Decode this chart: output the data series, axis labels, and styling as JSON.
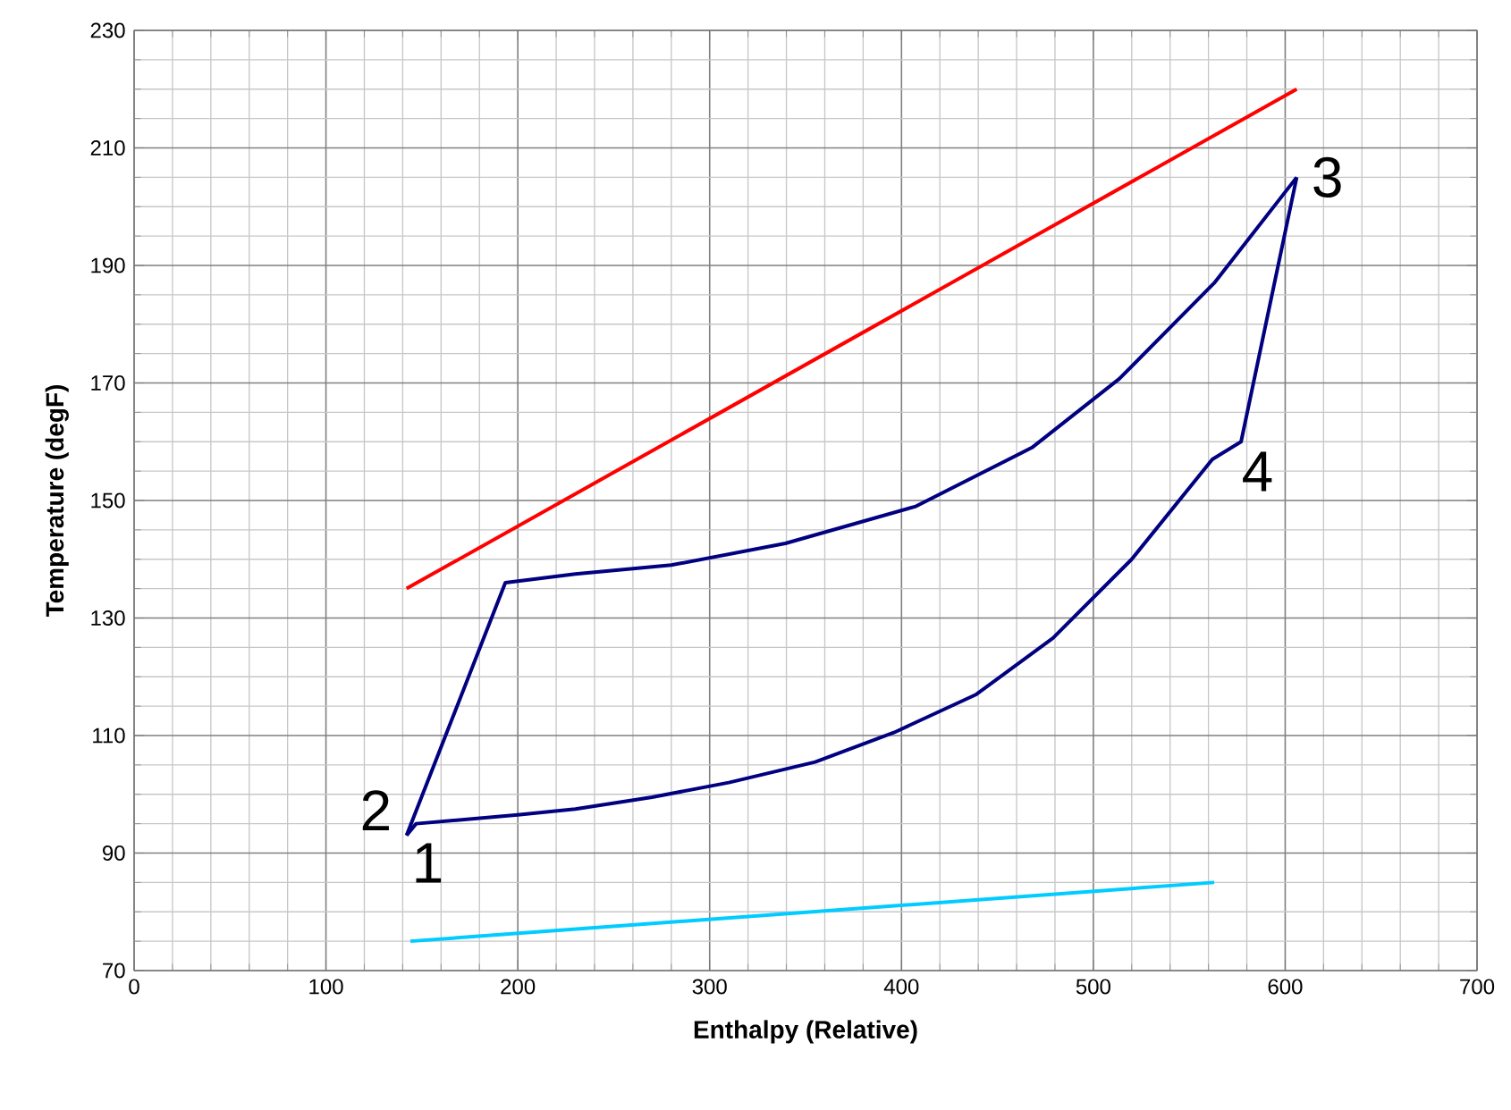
{
  "chart_data": {
    "type": "line",
    "xlabel": "Enthalpy (Relative)",
    "ylabel": "Temperature (degF)",
    "xlim": [
      0,
      700
    ],
    "ylim": [
      70,
      230
    ],
    "xticks": [
      0,
      100,
      200,
      300,
      400,
      500,
      600,
      700
    ],
    "yticks": [
      70,
      90,
      110,
      130,
      150,
      170,
      190,
      210,
      230
    ],
    "grid": true,
    "marker": "none",
    "line_style": "solid",
    "series": [
      {
        "color": "#ff0000",
        "x": [
          142,
          606
        ],
        "values": [
          135,
          220
        ]
      },
      {
        "color": "#000080",
        "x": [
          142,
          193.5,
          230,
          280,
          339.5,
          407.5,
          468,
          513.5,
          563,
          606
        ],
        "values": [
          93,
          136,
          137.5,
          139,
          142.7,
          149,
          159,
          170.7,
          187,
          205
        ]
      },
      {
        "color": "#000080",
        "x": [
          142,
          147,
          200,
          230,
          270,
          310,
          355,
          396,
          439,
          479,
          520,
          562,
          577,
          606
        ],
        "values": [
          93,
          95,
          96.5,
          97.5,
          99.5,
          102,
          105.5,
          110.5,
          117,
          126.6,
          140,
          157,
          160,
          205
        ]
      },
      {
        "color": "#00ccff",
        "x": [
          144,
          563
        ],
        "values": [
          75,
          85
        ]
      }
    ],
    "annotations": [
      {
        "text": "1",
        "x": 147,
        "y": 95
      },
      {
        "text": "2",
        "x": 142,
        "y": 93
      },
      {
        "text": "3",
        "x": 606,
        "y": 205
      },
      {
        "text": "4",
        "x": 577,
        "y": 160
      }
    ]
  }
}
